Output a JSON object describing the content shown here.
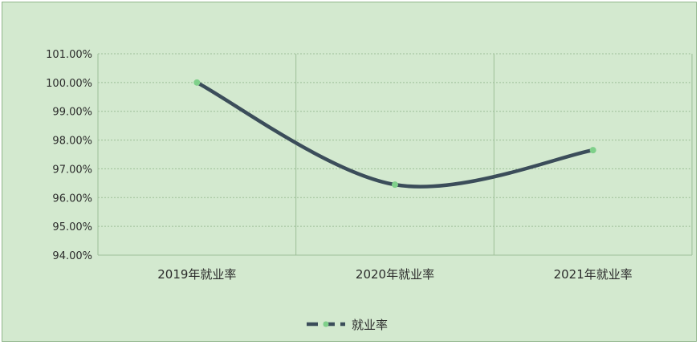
{
  "chart_data": {
    "type": "line",
    "categories": [
      "2019年就业率",
      "2020年就业率",
      "2021年就业率"
    ],
    "series": [
      {
        "name": "就业率",
        "values": [
          100.0,
          96.45,
          97.65
        ]
      }
    ],
    "y_ticks": [
      "94.00%",
      "95.00%",
      "96.00%",
      "97.00%",
      "98.00%",
      "99.00%",
      "100.00%",
      "101.00%"
    ],
    "ylim": [
      94,
      101
    ],
    "grid": true,
    "legend_position": "bottom",
    "colors": {
      "line": "#3b4d5a",
      "marker": "#7fd08a",
      "background": "#d3e9cf",
      "grid": "#9dbf98"
    }
  }
}
